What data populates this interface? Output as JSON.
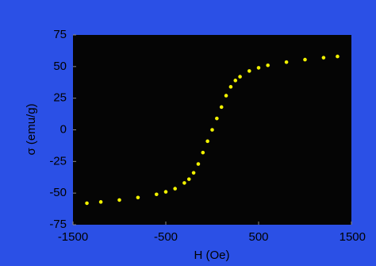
{
  "chart_data": {
    "type": "scatter",
    "xlabel": "H (Oe)",
    "ylabel": "σ (emu/g)",
    "x": [
      -1350,
      -1200,
      -1000,
      -800,
      -600,
      -500,
      -400,
      -300,
      -250,
      -200,
      -150,
      -100,
      -50,
      0,
      50,
      100,
      150,
      200,
      250,
      300,
      400,
      500,
      600,
      800,
      1000,
      1200,
      1350
    ],
    "series": [
      {
        "color": "#f2f200",
        "values": [
          -58,
          -57,
          -55.5,
          -53.5,
          -51,
          -49,
          -46.5,
          -42,
          -39,
          -34,
          -27,
          -18,
          -9,
          0,
          9,
          18,
          27,
          34,
          39,
          42,
          46.5,
          49,
          51,
          53.5,
          55.5,
          57,
          58
        ]
      }
    ],
    "xlim": [
      -1500,
      1500
    ],
    "xticks": [
      -1500,
      -500,
      500,
      1500
    ],
    "ylim": [
      -75,
      75
    ],
    "yticks": [
      75,
      50,
      25,
      0,
      -25,
      -50,
      -75
    ]
  }
}
